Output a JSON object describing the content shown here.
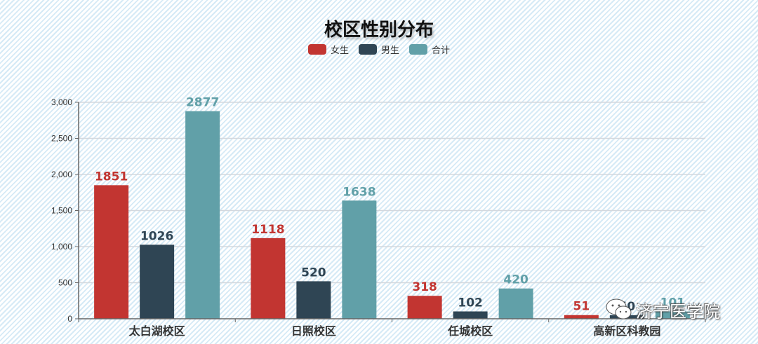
{
  "chart_data": {
    "type": "bar",
    "title": "校区性别分布",
    "categories": [
      "太白湖校区",
      "日照校区",
      "任城校区",
      "高新区科教园"
    ],
    "series": [
      {
        "name": "女生",
        "color": "#c23531",
        "values": [
          1851,
          1118,
          318,
          51
        ]
      },
      {
        "name": "男生",
        "color": "#2f4554",
        "values": [
          1026,
          520,
          102,
          50
        ]
      },
      {
        "name": "合计",
        "color": "#61a0a8",
        "values": [
          2877,
          1638,
          420,
          101
        ]
      }
    ],
    "xlabel": "",
    "ylabel": "",
    "ylim": [
      0,
      3000
    ],
    "yticks": [
      "0",
      "500",
      "1,000",
      "1,500",
      "2,000",
      "2,500",
      "3,000"
    ],
    "grid": true,
    "legend_position": "top-center"
  },
  "title": "校区性别分布",
  "legend": [
    {
      "label": "女生",
      "color": "#c23531"
    },
    {
      "label": "男生",
      "color": "#2f4554"
    },
    {
      "label": "合计",
      "color": "#61a0a8"
    }
  ],
  "watermark": {
    "text": "济宁医学院",
    "icon": "wechat-icon"
  }
}
